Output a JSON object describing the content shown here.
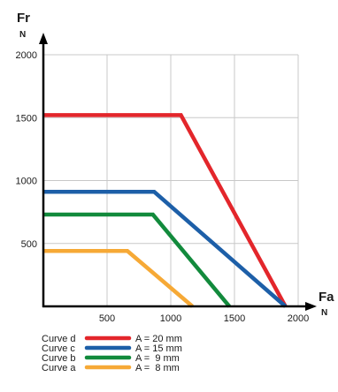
{
  "chart_data": {
    "type": "line",
    "xlabel": "Fa",
    "xunit": "N",
    "ylabel": "Fr",
    "yunit": "N",
    "xlim": [
      0,
      2000
    ],
    "ylim": [
      0,
      2000
    ],
    "xticks": [
      "500",
      "1000",
      "1500",
      "2000"
    ],
    "yticks": [
      "500",
      "1000",
      "1500",
      "2000"
    ],
    "grid": true,
    "series": [
      {
        "name": "Curve d",
        "value_label": "A = 20 mm",
        "color": "#e3262b",
        "points": [
          [
            0,
            1520
          ],
          [
            1080,
            1520
          ],
          [
            1900,
            0
          ]
        ]
      },
      {
        "name": "Curve c",
        "value_label": "A = 15 mm",
        "color": "#1d5fa8",
        "points": [
          [
            0,
            910
          ],
          [
            870,
            910
          ],
          [
            1900,
            0
          ]
        ]
      },
      {
        "name": "Curve b",
        "value_label": "A =  9 mm",
        "color": "#128a3c",
        "points": [
          [
            0,
            730
          ],
          [
            860,
            730
          ],
          [
            1460,
            0
          ]
        ]
      },
      {
        "name": "Curve a",
        "value_label": "A =  8 mm",
        "color": "#f6a936",
        "points": [
          [
            0,
            440
          ],
          [
            660,
            440
          ],
          [
            1170,
            0
          ]
        ]
      }
    ]
  }
}
